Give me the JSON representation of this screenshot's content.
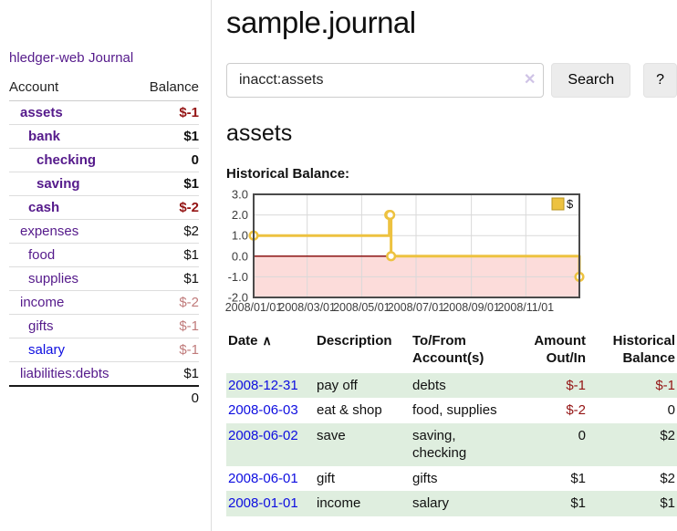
{
  "app": {
    "brand": "hledger-web",
    "nav": {
      "journal": "Journal"
    }
  },
  "colors": {
    "accent_purple": "#551a8b",
    "link_blue": "#0d0de0",
    "negative_red": "#941414",
    "negative_faded": "#c07b7b",
    "row_stripe_green": "#dfeedf",
    "chart_series_yellow": "#edc240",
    "chart_negative_pink": "#fcdcda",
    "chart_zero_line": "#8b1414"
  },
  "sidebar": {
    "table": {
      "headers": {
        "account": "Account",
        "balance": "Balance"
      }
    },
    "accounts": [
      {
        "name": "assets",
        "depth": 1,
        "bold": true,
        "name_style": "purple",
        "balance": "$-1",
        "balance_style": "neg-bold"
      },
      {
        "name": "bank",
        "depth": 2,
        "bold": true,
        "name_style": "purple",
        "balance": "$1",
        "balance_style": "bold"
      },
      {
        "name": "checking",
        "depth": 3,
        "bold": true,
        "name_style": "purple",
        "balance": "0",
        "balance_style": "bold"
      },
      {
        "name": "saving",
        "depth": 3,
        "bold": true,
        "name_style": "purple",
        "balance": "$1",
        "balance_style": "bold"
      },
      {
        "name": "cash",
        "depth": 2,
        "bold": true,
        "name_style": "purple",
        "balance": "$-2",
        "balance_style": "neg-bold"
      },
      {
        "name": "expenses",
        "depth": 1,
        "bold": false,
        "name_style": "purple",
        "balance": "$2",
        "balance_style": "plain"
      },
      {
        "name": "food",
        "depth": 2,
        "bold": false,
        "name_style": "purple",
        "balance": "$1",
        "balance_style": "plain"
      },
      {
        "name": "supplies",
        "depth": 2,
        "bold": false,
        "name_style": "purple",
        "balance": "$1",
        "balance_style": "plain"
      },
      {
        "name": "income",
        "depth": 1,
        "bold": false,
        "name_style": "purple",
        "balance": "$-2",
        "balance_style": "neg-faded"
      },
      {
        "name": "gifts",
        "depth": 2,
        "bold": false,
        "name_style": "purple",
        "balance": "$-1",
        "balance_style": "neg-faded"
      },
      {
        "name": "salary",
        "depth": 2,
        "bold": false,
        "name_style": "blue",
        "balance": "$-1",
        "balance_style": "neg-faded"
      },
      {
        "name": "liabilities:debts",
        "depth": 1,
        "bold": false,
        "name_style": "purple",
        "balance": "$1",
        "balance_style": "plain"
      }
    ],
    "total": "0"
  },
  "header": {
    "title": "sample.journal"
  },
  "search": {
    "value": "inacct:assets",
    "clear_icon": "✕",
    "button_label": "Search",
    "help_label": "?"
  },
  "register": {
    "heading": "assets",
    "chart_label": "Historical Balance:",
    "table": {
      "headers": {
        "date": "Date",
        "sort_icon": "∧",
        "description": "Description",
        "accounts": "To/From Account(s)",
        "amount": "Amount Out/In",
        "balance": "Historical Balance"
      }
    },
    "rows": [
      {
        "date": "2008-12-31",
        "description": "pay off",
        "accounts": "debts",
        "amount": "$-1",
        "amount_style": "neg",
        "balance": "$-1",
        "balance_style": "neg"
      },
      {
        "date": "2008-06-03",
        "description": "eat & shop",
        "accounts": "food, supplies",
        "amount": "$-2",
        "amount_style": "neg",
        "balance": "0",
        "balance_style": "plain"
      },
      {
        "date": "2008-06-02",
        "description": "save",
        "accounts": "saving,\nchecking",
        "amount": "0",
        "amount_style": "plain",
        "balance": "$2",
        "balance_style": "plain"
      },
      {
        "date": "2008-06-01",
        "description": "gift",
        "accounts": "gifts",
        "amount": "$1",
        "amount_style": "plain",
        "balance": "$2",
        "balance_style": "plain"
      },
      {
        "date": "2008-01-01",
        "description": "income",
        "accounts": "salary",
        "amount": "$1",
        "amount_style": "plain",
        "balance": "$1",
        "balance_style": "plain"
      }
    ]
  },
  "chart_data": {
    "type": "line",
    "title": "Historical Balance",
    "legend": "$",
    "legend_position": "top-right",
    "grid": true,
    "x_range": [
      "2008/01/01",
      "2008/12/31"
    ],
    "x_ticks": [
      "2008/01/01",
      "2008/03/01",
      "2008/05/01",
      "2008/07/01",
      "2008/09/01",
      "2008/11/01"
    ],
    "y_ticks": [
      3.0,
      2.0,
      1.0,
      0.0,
      -1.0,
      -2.0
    ],
    "ylim": [
      -2,
      3
    ],
    "negative_region_color": "#fcdcda",
    "zero_line_color": "#8b1414",
    "series": [
      {
        "name": "$",
        "color": "#edc240",
        "step": true,
        "points": [
          [
            "2008/01/01",
            1
          ],
          [
            "2008/06/01",
            2
          ],
          [
            "2008/06/02",
            2
          ],
          [
            "2008/06/03",
            0
          ],
          [
            "2008/12/31",
            -1
          ]
        ]
      }
    ]
  }
}
